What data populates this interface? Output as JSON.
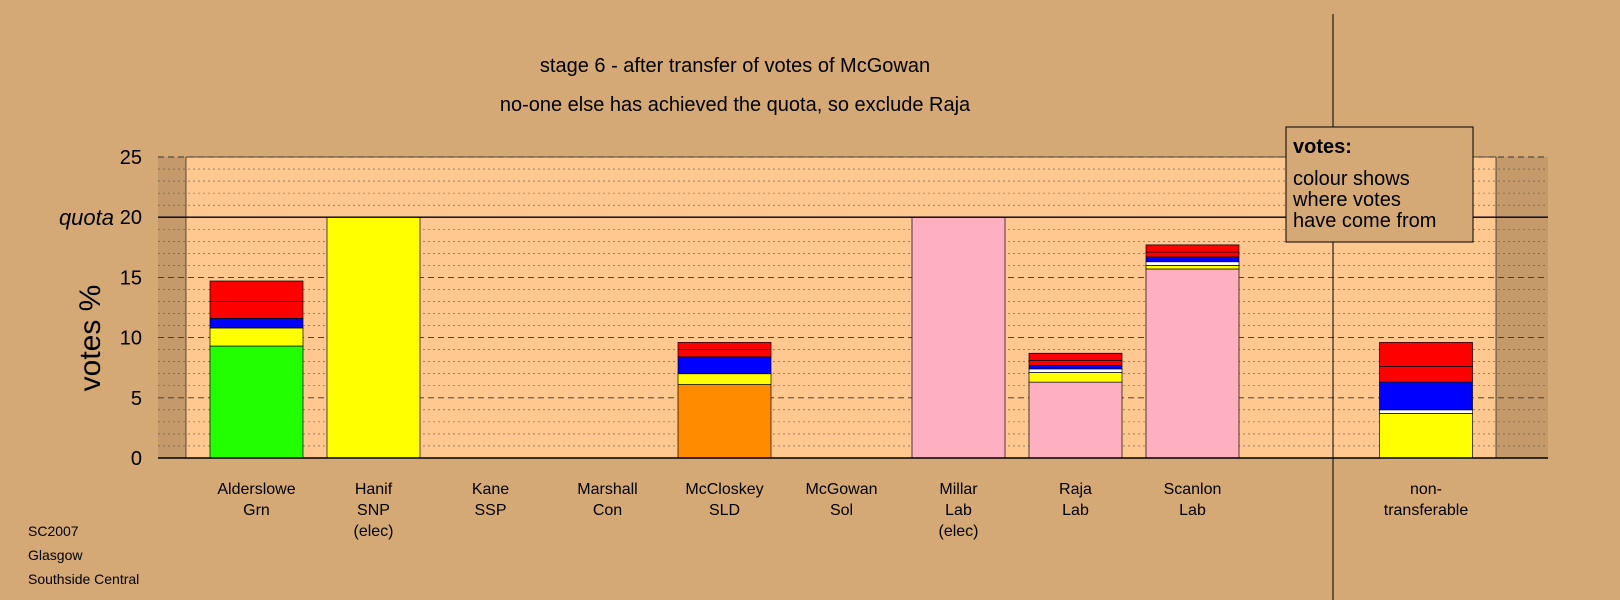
{
  "chart_data": {
    "type": "bar",
    "stacked": true,
    "title": "stage 6 - after transfer of votes of McGowan",
    "subtitle": "no-one else has achieved the quota, so exclude Raja",
    "ylabel": "votes %",
    "quota_label": "quota",
    "quota": 20,
    "ylim": [
      0,
      25
    ],
    "yticks": [
      0,
      5,
      10,
      15,
      20,
      25
    ],
    "grid": true,
    "legend": {
      "position": "top-right",
      "title": "votes:",
      "lines": [
        "colour shows",
        "where votes",
        "have come from"
      ]
    },
    "categories": [
      {
        "lines": [
          "Alderslowe",
          "Grn"
        ]
      },
      {
        "lines": [
          "Hanif",
          "SNP",
          "(elec)"
        ]
      },
      {
        "lines": [
          "Kane",
          "SSP"
        ]
      },
      {
        "lines": [
          "Marshall",
          "Con"
        ]
      },
      {
        "lines": [
          "McCloskey",
          "SLD"
        ]
      },
      {
        "lines": [
          "McGowan",
          "Sol"
        ]
      },
      {
        "lines": [
          "Millar",
          "Lab",
          "(elec)"
        ]
      },
      {
        "lines": [
          "Raja",
          "Lab"
        ]
      },
      {
        "lines": [
          "Scanlon",
          "Lab"
        ]
      },
      {
        "lines": [
          "non-",
          "transferable"
        ]
      }
    ],
    "stacks": [
      [
        {
          "value": 9.3,
          "color": "#22ff00"
        },
        {
          "value": 1.5,
          "color": "#ffff00"
        },
        {
          "value": 0.8,
          "color": "#0000ff"
        },
        {
          "value": 1.4,
          "color": "#ff0000"
        },
        {
          "value": 1.7,
          "color": "#ff0000"
        }
      ],
      [
        {
          "value": 20.0,
          "color": "#ffff00"
        }
      ],
      [],
      [],
      [
        {
          "value": 6.1,
          "color": "#ff8c00"
        },
        {
          "value": 0.9,
          "color": "#ffff00"
        },
        {
          "value": 1.4,
          "color": "#0000ff"
        },
        {
          "value": 0.6,
          "color": "#ff0000"
        },
        {
          "value": 0.6,
          "color": "#ff0000"
        }
      ],
      [],
      [
        {
          "value": 20.0,
          "color": "#ffb0c0"
        }
      ],
      [
        {
          "value": 6.3,
          "color": "#ffb0c0"
        },
        {
          "value": 0.8,
          "color": "#ffff00"
        },
        {
          "value": 0.3,
          "color": "#ffffff"
        },
        {
          "value": 0.3,
          "color": "#0000ff"
        },
        {
          "value": 0.4,
          "color": "#ff0000"
        },
        {
          "value": 0.6,
          "color": "#ff0000"
        }
      ],
      [
        {
          "value": 15.7,
          "color": "#ffb0c0"
        },
        {
          "value": 0.3,
          "color": "#ffff00"
        },
        {
          "value": 0.3,
          "color": "#ffffff"
        },
        {
          "value": 0.4,
          "color": "#0000ff"
        },
        {
          "value": 0.4,
          "color": "#ff0000"
        },
        {
          "value": 0.6,
          "color": "#ff0000"
        }
      ],
      [
        {
          "value": 3.7,
          "color": "#ffff00"
        },
        {
          "value": 0.3,
          "color": "#ffffff"
        },
        {
          "value": 2.3,
          "color": "#0000ff"
        },
        {
          "value": 1.3,
          "color": "#ff0000"
        },
        {
          "value": 2.0,
          "color": "#ff0000"
        }
      ]
    ]
  },
  "footer": {
    "line1": "SC2007",
    "line2": "Glasgow",
    "line3": "Southside Central"
  },
  "colors": {
    "background": "#d4a976",
    "plot_background": "#ffc890",
    "side_shade": "#c49a6a"
  }
}
